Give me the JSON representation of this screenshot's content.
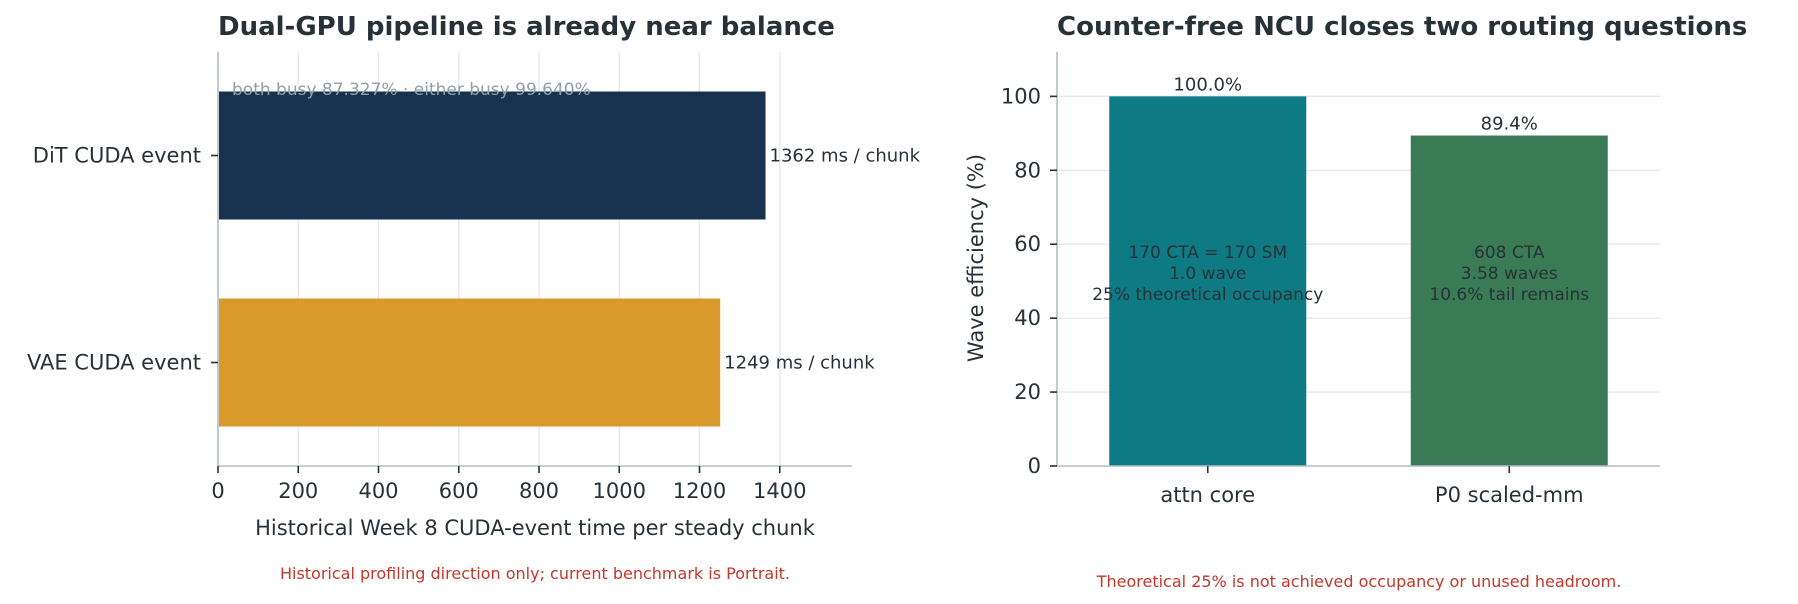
{
  "colors": {
    "dit": "#17324f",
    "vae": "#d99a2b",
    "attn": "#0d7a84",
    "p0": "#3a7b56",
    "note": "#c0392b",
    "busy": "#8fa0ad"
  },
  "chart_data": [
    {
      "type": "bar",
      "orientation": "horizontal",
      "title": "Dual-GPU pipeline is already near balance",
      "xlabel": "Historical Week 8 CUDA-event time per steady chunk",
      "ylabel": "",
      "categories": [
        "DiT CUDA event",
        "VAE CUDA event"
      ],
      "values": [
        1362,
        1249
      ],
      "value_labels": [
        "1362 ms / chunk",
        "1249 ms / chunk"
      ],
      "bar_colors": [
        "#17324f",
        "#d99a2b"
      ],
      "xlim": [
        0,
        1580
      ],
      "xticks": [
        0,
        200,
        400,
        600,
        800,
        1000,
        1200,
        1400
      ],
      "grid": "vertical",
      "annotation": "both busy 87.327% · either busy 99.640%",
      "footnote": "Historical profiling direction only; current benchmark is Portrait."
    },
    {
      "type": "bar",
      "orientation": "vertical",
      "title": "Counter-free NCU closes two routing questions",
      "xlabel": "",
      "ylabel": "Wave efficiency (%)",
      "categories": [
        "attn core",
        "P0 scaled-mm"
      ],
      "values": [
        100.0,
        89.4
      ],
      "value_labels": [
        "100.0%",
        "89.4%"
      ],
      "bar_colors": [
        "#0d7a84",
        "#3a7b56"
      ],
      "ylim": [
        0,
        112
      ],
      "yticks": [
        0,
        20,
        40,
        60,
        80,
        100
      ],
      "grid": "horizontal",
      "inner_labels": [
        [
          "170 CTA = 170 SM",
          "1.0 wave",
          "25% theoretical occupancy"
        ],
        [
          "608 CTA",
          "3.58 waves",
          "10.6% tail remains"
        ]
      ],
      "footnote": "Theoretical 25% is not achieved occupancy or unused headroom."
    }
  ]
}
